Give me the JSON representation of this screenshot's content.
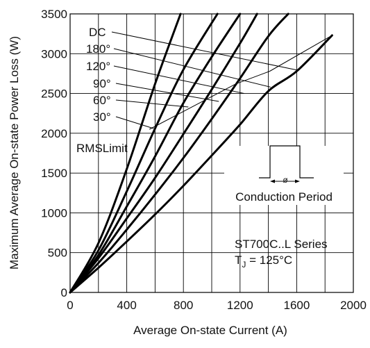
{
  "chart_data": {
    "type": "line",
    "title": "",
    "xlabel": "Average On-state Current (A)",
    "ylabel": "Maximum Average On-state Power Loss (W)",
    "xlim": [
      0,
      2000
    ],
    "ylim": [
      0,
      3500
    ],
    "x_ticks": [
      "0",
      "400",
      "800",
      "1200",
      "1600",
      "2000"
    ],
    "y_ticks": [
      "0",
      "500",
      "1000",
      "1500",
      "2000",
      "2500",
      "3000",
      "3500"
    ],
    "grid": true,
    "series": [
      {
        "name": "30°",
        "x": [
          0,
          200,
          400,
          600,
          780
        ],
        "y": [
          0,
          620,
          1550,
          2620,
          3500
        ]
      },
      {
        "name": "60°",
        "x": [
          0,
          200,
          400,
          600,
          800,
          1040
        ],
        "y": [
          0,
          530,
          1270,
          2060,
          2800,
          3500
        ]
      },
      {
        "name": "90°",
        "x": [
          0,
          200,
          400,
          600,
          800,
          1000,
          1200
        ],
        "y": [
          0,
          470,
          1080,
          1710,
          2380,
          2960,
          3500
        ]
      },
      {
        "name": "120°",
        "x": [
          0,
          200,
          400,
          600,
          800,
          1000,
          1200,
          1320
        ],
        "y": [
          0,
          430,
          930,
          1440,
          1990,
          2550,
          3130,
          3500
        ]
      },
      {
        "name": "180°",
        "x": [
          0,
          200,
          400,
          600,
          800,
          1000,
          1200,
          1400,
          1540
        ],
        "y": [
          0,
          370,
          790,
          1230,
          1690,
          2180,
          2690,
          3220,
          3500
        ]
      },
      {
        "name": "DC",
        "x": [
          0,
          200,
          400,
          600,
          800,
          1000,
          1200,
          1400,
          1600,
          1850
        ],
        "y": [
          0,
          310,
          640,
          980,
          1340,
          1720,
          2110,
          2530,
          2780,
          3230
        ]
      }
    ],
    "rms_limit": {
      "label": "RMSLimit",
      "points": [
        [
          560,
          2050
        ],
        [
          1170,
          2620
        ],
        [
          1410,
          2780
        ],
        [
          1850,
          3230
        ]
      ]
    },
    "annotations": {
      "series_text": "ST700C..L Series",
      "tj_prefix": "T",
      "tj_sub": "J",
      "tj_suffix": " = 125°C",
      "conduction_label": "Conduction Period",
      "angle_symbol": "ø"
    }
  }
}
